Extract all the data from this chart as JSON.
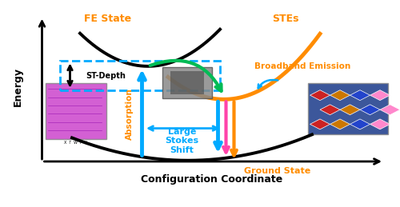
{
  "background_color": "#ffffff",
  "fe_state_label": "FE State",
  "stes_label": "STEs",
  "ground_state_label": "Ground State",
  "broadband_label": "Broadband Emission",
  "st_depth_label": "ST-Depth",
  "absorption_label": "Absorption",
  "stokes_label": "Large\nStokes\nShift",
  "config_coord_label": "Configuration Coordinate",
  "energy_label": "Energy",
  "fe_curve_color": "#000000",
  "ste_curve_color": "#ff8c00",
  "green_arrow_color": "#00bb55",
  "cyan_arrow_color": "#00aaff",
  "magenta_arrow_color": "#ff44aa",
  "orange_arrow_color": "#ff8c00",
  "stokes_arrow_color": "#00aaff",
  "dashed_box_color": "#00aaff",
  "label_fe_color": "#ff8c00",
  "label_ste_color": "#ff8c00",
  "label_ground_color": "#ff8c00",
  "label_broadband_color": "#ff8c00",
  "label_absorption_color": "#ff8c00",
  "label_stokes_color": "#00aaff",
  "axis_color": "#000000",
  "ground_parabola_color": "#000000",
  "fe_parabola_color": "#000000",
  "xlim": [
    0,
    10
  ],
  "ylim": [
    0,
    10
  ]
}
